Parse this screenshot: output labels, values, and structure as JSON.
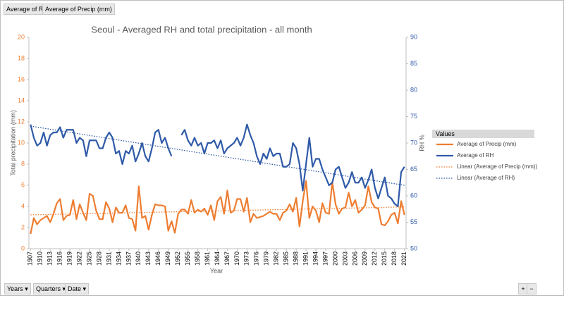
{
  "field_buttons": [
    "Average of RH",
    "Average of Precip (mm)"
  ],
  "axis_buttons": [
    "Years",
    "Quarters",
    "Date"
  ],
  "chart_data": {
    "type": "line",
    "title": "Seoul - Averaged RH and total precipitation - all month",
    "x_label": "Year",
    "y_label": "Total precipitation (mm)",
    "y2_label": "RH %",
    "legend_title": "Values",
    "legend": "right",
    "categories": [
      "1907",
      null,
      null,
      "1910",
      null,
      null,
      "1913",
      null,
      null,
      "1916",
      null,
      null,
      "1919",
      null,
      null,
      "1922",
      null,
      null,
      "1925",
      null,
      null,
      "1928",
      null,
      null,
      "1931",
      null,
      null,
      "1934",
      null,
      null,
      "1937",
      null,
      null,
      "1940",
      null,
      null,
      "1943",
      null,
      null,
      "1946",
      null,
      null,
      "1949",
      null,
      null,
      "1952",
      null,
      null,
      "1955",
      null,
      null,
      "1958",
      null,
      null,
      "1961",
      null,
      null,
      "1964",
      null,
      null,
      "1967",
      null,
      null,
      "1970",
      null,
      null,
      "1973",
      null,
      null,
      "1976",
      null,
      null,
      "1979",
      null,
      null,
      "1982",
      null,
      null,
      "1985",
      null,
      null,
      "1988",
      null,
      null,
      "1991",
      null,
      null,
      "1994",
      null,
      null,
      "1997",
      null,
      null,
      "2000",
      null,
      null,
      "2003",
      null,
      null,
      "2006",
      null,
      null,
      "2009",
      null,
      null,
      "2012",
      null,
      null,
      "2015",
      null,
      null,
      "2018",
      null,
      null,
      "2021"
    ],
    "ylim": [
      0,
      20
    ],
    "yticks": [
      0,
      2,
      4,
      6,
      8,
      10,
      12,
      14,
      16,
      18,
      20
    ],
    "y2lim": [
      50,
      90
    ],
    "y2ticks": [
      50,
      55,
      60,
      65,
      70,
      75,
      80,
      85,
      90
    ],
    "series": [
      {
        "name": "Average of Precip (mm)",
        "color": "#ed7d31",
        "axis": "y",
        "values": [
          1.4,
          2.9,
          2.3,
          2.7,
          2.9,
          3.1,
          2.5,
          3.3,
          4.3,
          4.7,
          2.7,
          3.1,
          3.2,
          4.6,
          2.8,
          4.2,
          3.4,
          2.7,
          5.2,
          5.0,
          3.6,
          2.8,
          2.8,
          4.4,
          3.8,
          2.5,
          3.9,
          3.4,
          3.4,
          4.1,
          2.9,
          2.8,
          1.7,
          5.9,
          2.9,
          3.1,
          1.8,
          3.2,
          4.2,
          4.1,
          4.1,
          4.0,
          1.7,
          2.6,
          1.5,
          3.3,
          3.7,
          3.7,
          3.3,
          4.6,
          3.4,
          3.7,
          3.5,
          3.8,
          3.2,
          4.1,
          2.7,
          4.5,
          4.9,
          3.3,
          5.5,
          3.4,
          3.6,
          4.7,
          4.7,
          3.5,
          4.8,
          2.5,
          3.3,
          2.9,
          3.0,
          3.1,
          3.3,
          3.5,
          3.3,
          3.3,
          2.7,
          3.4,
          3.6,
          4.2,
          3.5,
          4.8,
          2.1,
          4.5,
          6.4,
          2.9,
          4.0,
          3.6,
          2.5,
          4.3,
          3.4,
          3.3,
          6.3,
          4.2,
          3.3,
          3.8,
          3.9,
          5.3,
          4.0,
          4.6,
          3.4,
          3.7,
          4.1,
          5.9,
          4.4,
          3.9,
          3.8,
          2.3,
          2.2,
          2.6,
          3.2,
          3.4,
          2.4,
          4.5,
          3.2
        ]
      },
      {
        "name": "Average of RH",
        "color": "#2f5aa8",
        "axis": "y2",
        "values": [
          73.5,
          71,
          69.5,
          70,
          72,
          69.5,
          71.5,
          72,
          72,
          73,
          71,
          72.5,
          72.5,
          72.5,
          70,
          71,
          70.5,
          67.5,
          70.5,
          70.5,
          70.5,
          69,
          69,
          71,
          72,
          71,
          68,
          68.5,
          66,
          68.5,
          68,
          69.5,
          66.5,
          68,
          70,
          67.5,
          66.5,
          69,
          72,
          72.5,
          70,
          71,
          69,
          67.5,
          null,
          null,
          71.5,
          72.5,
          70.5,
          69.5,
          71,
          69.5,
          70,
          68,
          70,
          70,
          70.5,
          69,
          70.5,
          68,
          69,
          69.5,
          70,
          71,
          69.5,
          71,
          73.5,
          71.5,
          70,
          67.5,
          66,
          68,
          67,
          69,
          67.5,
          68,
          68,
          65.5,
          65.5,
          66,
          70,
          69,
          66,
          61,
          66,
          71,
          65.5,
          67,
          67,
          65,
          63.5,
          62,
          62.5,
          65,
          65.5,
          63.5,
          61.5,
          62.5,
          64.5,
          62.5,
          62.5,
          63.5,
          61.5,
          63,
          65,
          61.5,
          59.5,
          61.5,
          63.5,
          60,
          59.5,
          58.5,
          58,
          64.5,
          65.5
        ]
      }
    ],
    "trendlines": [
      {
        "name": "Linear (Average of Precip (mm))",
        "color": "#ed7d31",
        "axis": "y",
        "values": [
          3.2,
          3.95
        ]
      },
      {
        "name": "Linear (Average of RH)",
        "color": "#2f5aa8",
        "axis": "y2",
        "values": [
          73.2,
          62
        ]
      }
    ]
  }
}
